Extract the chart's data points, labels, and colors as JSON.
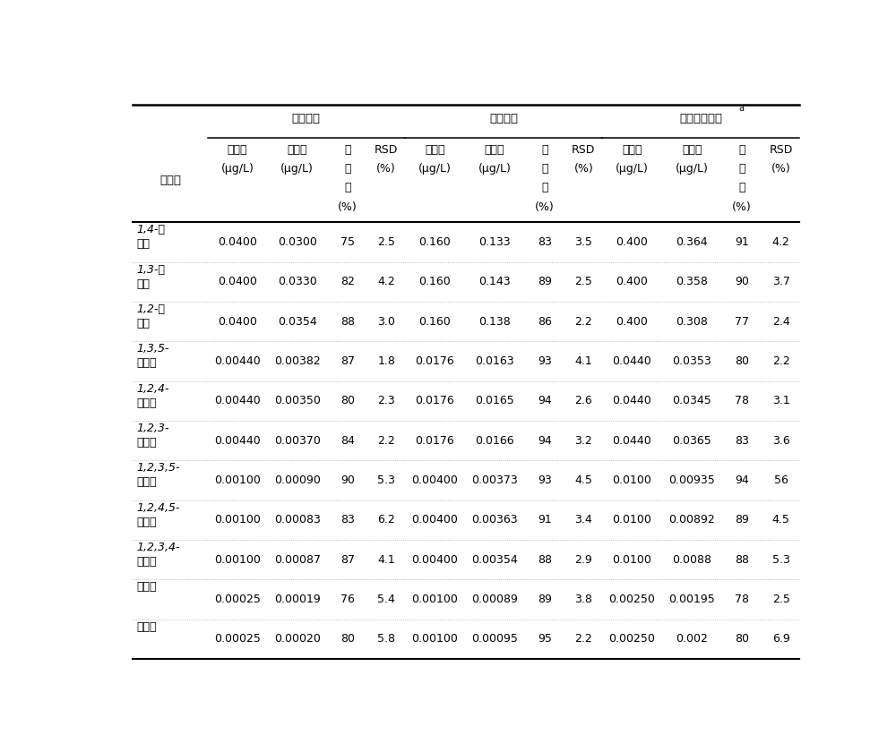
{
  "group_headers": [
    "标准海水",
    "标准海水",
    "标准海水海水"
  ],
  "group_header_super": [
    "",
    "",
    "a"
  ],
  "analytes": [
    "1,4-二\n氯苯",
    "1,3-二\n氯苯",
    "1,2-二\n氯苯",
    "1,3,5-\n三氯苯",
    "1,2,4-\n三氯苯",
    "1,2,3-\n三氯苯",
    "1,2,3,5-\n四氯苯",
    "1,2,4,5-\n四氯苯",
    "1,2,3,4-\n四氯苯",
    "五氯苯",
    "六氯苯"
  ],
  "col_header_row1": [
    "分析物",
    "加标量",
    "测得值",
    "回",
    "RSD",
    "加标量",
    "测得值",
    "回",
    "RSD",
    "加标量",
    "测得值",
    "回",
    "RSD"
  ],
  "col_header_row2": [
    "",
    "(μg/L)",
    "(μg/L)",
    "收",
    "(%)",
    "(μg/L)",
    "(μg/L)",
    "收",
    "(%)",
    "(μg/L)",
    "(μg/L)",
    "收",
    "(%)"
  ],
  "col_header_row3": [
    "",
    "",
    "",
    "率",
    "",
    "",
    "",
    "率",
    "",
    "",
    "",
    "率",
    ""
  ],
  "col_header_row4": [
    "",
    "",
    "",
    "(%)",
    "",
    "",
    "",
    "(%)",
    "",
    "",
    "",
    "(%)",
    ""
  ],
  "data": [
    [
      "0.0400",
      "0.0300",
      "75",
      "2.5",
      "0.160",
      "0.133",
      "83",
      "3.5",
      "0.400",
      "0.364",
      "91",
      "4.2"
    ],
    [
      "0.0400",
      "0.0330",
      "82",
      "4.2",
      "0.160",
      "0.143",
      "89",
      "2.5",
      "0.400",
      "0.358",
      "90",
      "3.7"
    ],
    [
      "0.0400",
      "0.0354",
      "88",
      "3.0",
      "0.160",
      "0.138",
      "86",
      "2.2",
      "0.400",
      "0.308",
      "77",
      "2.4"
    ],
    [
      "0.00440",
      "0.00382",
      "87",
      "1.8",
      "0.0176",
      "0.0163",
      "93",
      "4.1",
      "0.0440",
      "0.0353",
      "80",
      "2.2"
    ],
    [
      "0.00440",
      "0.00350",
      "80",
      "2.3",
      "0.0176",
      "0.0165",
      "94",
      "2.6",
      "0.0440",
      "0.0345",
      "78",
      "3.1"
    ],
    [
      "0.00440",
      "0.00370",
      "84",
      "2.2",
      "0.0176",
      "0.0166",
      "94",
      "3.2",
      "0.0440",
      "0.0365",
      "83",
      "3.6"
    ],
    [
      "0.00100",
      "0.00090",
      "90",
      "5.3",
      "0.00400",
      "0.00373",
      "93",
      "4.5",
      "0.0100",
      "0.00935",
      "94",
      "56"
    ],
    [
      "0.00100",
      "0.00083",
      "83",
      "6.2",
      "0.00400",
      "0.00363",
      "91",
      "3.4",
      "0.0100",
      "0.00892",
      "89",
      "4.5"
    ],
    [
      "0.00100",
      "0.00087",
      "87",
      "4.1",
      "0.00400",
      "0.00354",
      "88",
      "2.9",
      "0.0100",
      "0.0088",
      "88",
      "5.3"
    ],
    [
      "0.00025",
      "0.00019",
      "76",
      "5.4",
      "0.00100",
      "0.00089",
      "89",
      "3.8",
      "0.00250",
      "0.00195",
      "78",
      "2.5"
    ],
    [
      "0.00025",
      "0.00020",
      "80",
      "5.8",
      "0.00100",
      "0.00095",
      "95",
      "2.2",
      "0.00250",
      "0.002",
      "80",
      "6.9"
    ]
  ],
  "bg_color": "#ffffff",
  "text_color": "#000000"
}
